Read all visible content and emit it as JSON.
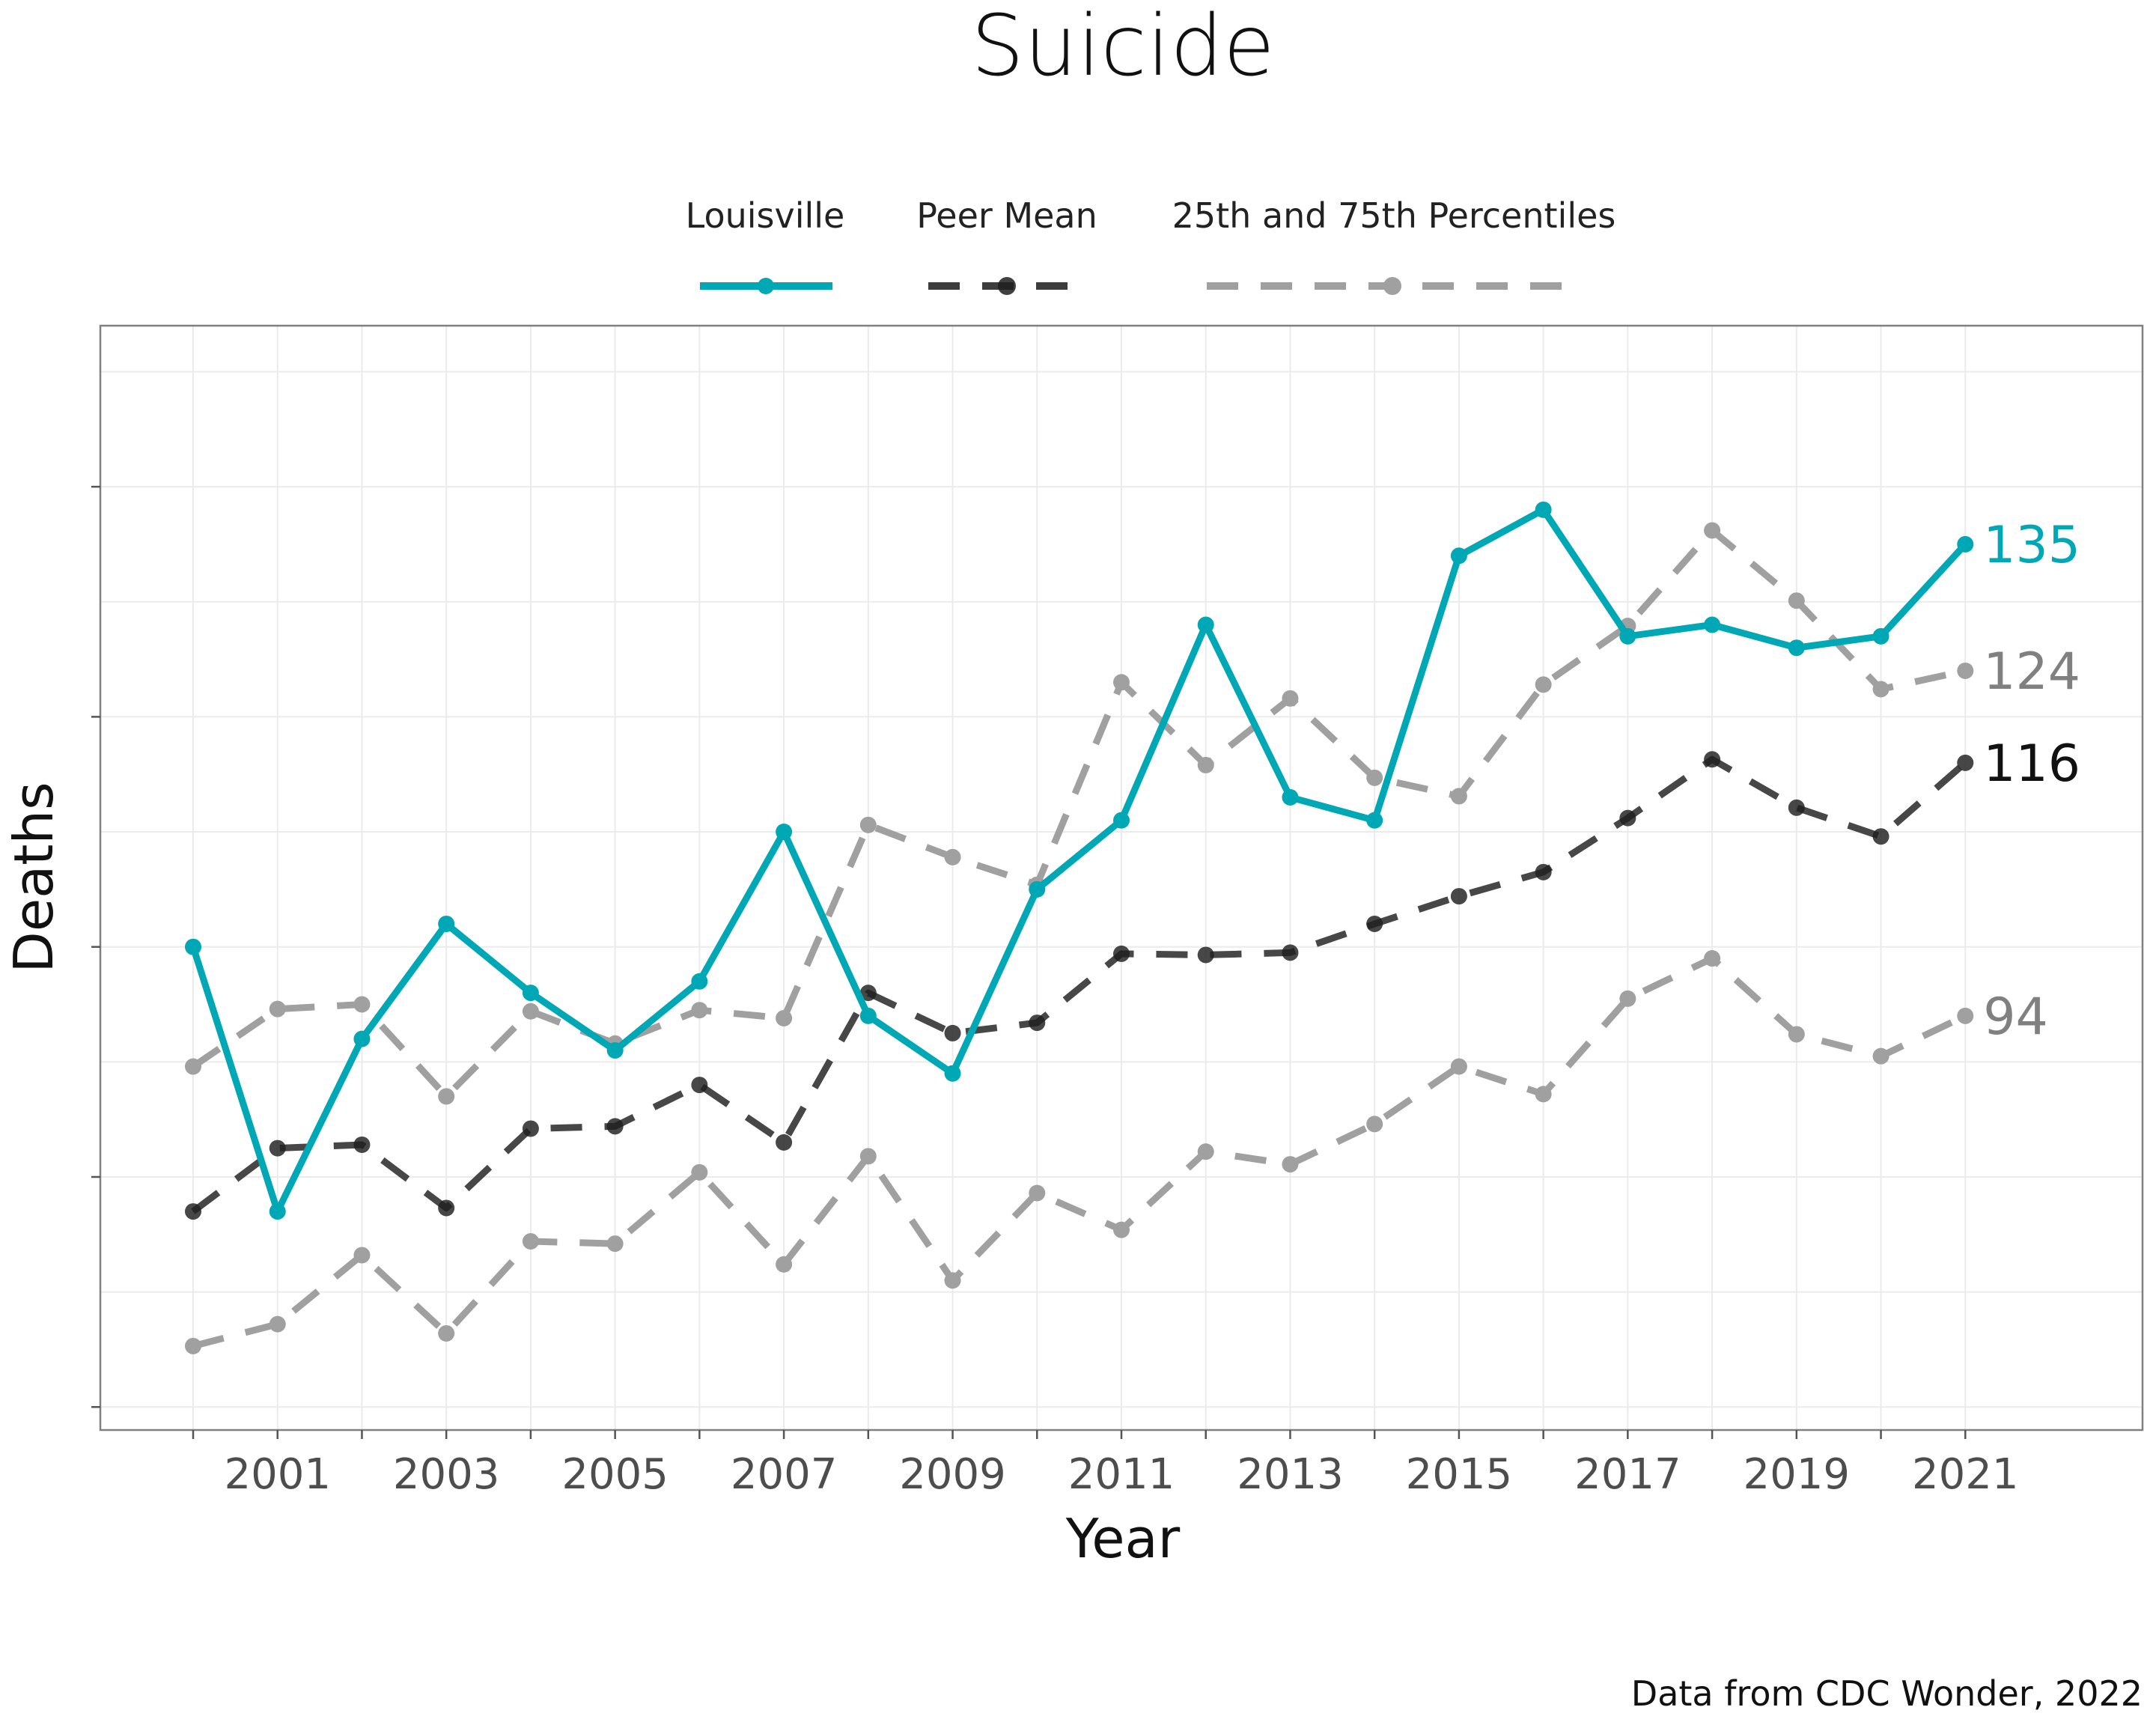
{
  "chart_data": {
    "type": "line",
    "title": "Suicide",
    "xlabel": "Year",
    "ylabel": "Deaths",
    "caption": "Data from CDC Wonder, 2022",
    "x": [
      2000,
      2001,
      2002,
      2003,
      2004,
      2005,
      2006,
      2007,
      2008,
      2009,
      2010,
      2011,
      2012,
      2013,
      2014,
      2015,
      2016,
      2017,
      2018,
      2019,
      2020,
      2021
    ],
    "x_tick_labels": [
      "2001",
      "2003",
      "2005",
      "2007",
      "2009",
      "2011",
      "2013",
      "2015",
      "2017",
      "2019",
      "2021"
    ],
    "x_ticks": [
      2001,
      2003,
      2005,
      2007,
      2009,
      2011,
      2013,
      2015,
      2017,
      2019,
      2021
    ],
    "xlim": [
      1998.9,
      2023.1
    ],
    "ylim": [
      58,
      154
    ],
    "y_ticks": [
      60,
      80,
      100,
      120,
      140
    ],
    "y_tick_labels_shown": false,
    "grid": true,
    "legend_position": "top",
    "legend": [
      {
        "label": "Louisville",
        "style": "solid",
        "color": "#00a8b5"
      },
      {
        "label": "Peer Mean",
        "style": "dashed",
        "color": "#3d3d3d"
      },
      {
        "label": "25th and 75th Percentiles",
        "style": "dashed",
        "color": "#a0a0a0"
      }
    ],
    "series": [
      {
        "name": "Louisville",
        "color": "#00a8b5",
        "dashed": false,
        "values": [
          100,
          77,
          92,
          102,
          96,
          91,
          97,
          110,
          94,
          89,
          105,
          111,
          128,
          113,
          111,
          134,
          138,
          127,
          128,
          126,
          127,
          135
        ],
        "end_label": "135"
      },
      {
        "name": "Peer Mean",
        "color": "#3d3d3d",
        "dashed": true,
        "values": [
          77,
          82.5,
          82.8,
          77.3,
          84.2,
          84.4,
          88,
          83,
          96,
          92.5,
          93.4,
          99.4,
          99.3,
          99.5,
          102,
          104.4,
          106.5,
          111.2,
          116.3,
          112.1,
          109.6,
          116
        ],
        "end_label": "116"
      },
      {
        "name": "25th Percentile",
        "color": "#a0a0a0",
        "dashed": true,
        "values": [
          65.3,
          67.2,
          73.2,
          66.4,
          74.4,
          74.2,
          80.4,
          72.4,
          81.8,
          71,
          78.6,
          75.4,
          82.2,
          81.1,
          84.6,
          89.6,
          87.2,
          95.5,
          99,
          92.4,
          90.5,
          94
        ],
        "end_label": "94"
      },
      {
        "name": "75th Percentile",
        "color": "#a0a0a0",
        "dashed": true,
        "values": [
          89.6,
          94.6,
          95,
          87,
          94.4,
          91.6,
          94.5,
          93.8,
          110.6,
          107.8,
          105.4,
          123,
          115.8,
          121.6,
          114.7,
          113.1,
          122.8,
          127.9,
          136.2,
          130.1,
          122.4,
          124
        ],
        "end_label": "124"
      }
    ]
  },
  "colors": {
    "louisville": "#00a8b5",
    "peer_mean": "#3d3d3d",
    "percentiles": "#a0a0a0",
    "grid": "#ebebeb",
    "panel_border": "#808080"
  }
}
